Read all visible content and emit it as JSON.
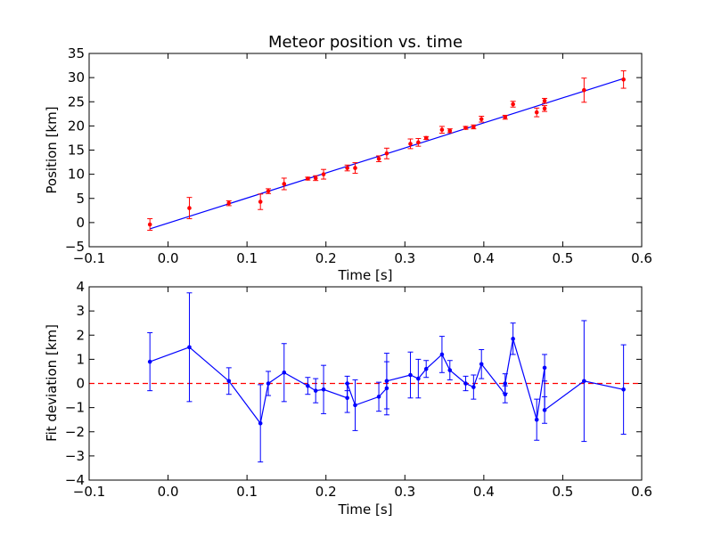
{
  "chart_data": [
    {
      "type": "scatter",
      "title": "Meteor position vs. time",
      "xlabel": "Time [s]",
      "ylabel": "Position [km]",
      "xlim": [
        -0.1,
        0.6
      ],
      "ylim": [
        -5,
        35
      ],
      "xticks": [
        -0.1,
        0.0,
        0.1,
        0.2,
        0.3,
        0.4,
        0.5,
        0.6
      ],
      "xtick_labels": [
        "−0.1",
        "0.0",
        "0.1",
        "0.2",
        "0.3",
        "0.4",
        "0.5",
        "0.6"
      ],
      "yticks": [
        -5,
        0,
        5,
        10,
        15,
        20,
        25,
        30,
        35
      ],
      "ytick_labels": [
        "−5",
        "0",
        "5",
        "10",
        "15",
        "20",
        "25",
        "30",
        "35"
      ],
      "grid": false,
      "colors": {
        "points": "#ff0000",
        "fit_line": "#0000ff"
      },
      "fit_line": {
        "x": [
          -0.023,
          0.577
        ],
        "y": [
          -1.3,
          29.8
        ]
      },
      "series": [
        {
          "x": [
            -0.023,
            0.027,
            0.077,
            0.117,
            0.127,
            0.147,
            0.177,
            0.187,
            0.197,
            0.227,
            0.237,
            0.267,
            0.277,
            0.307,
            0.317,
            0.327,
            0.347,
            0.357,
            0.377,
            0.387,
            0.397,
            0.427,
            0.437,
            0.467,
            0.477,
            0.477,
            0.527,
            0.577
          ],
          "y": [
            -0.4,
            3.0,
            4.0,
            4.3,
            6.5,
            8.0,
            9.1,
            9.2,
            10.0,
            11.3,
            11.3,
            13.2,
            14.3,
            16.3,
            16.6,
            17.5,
            19.2,
            19.0,
            19.6,
            19.8,
            21.4,
            21.8,
            24.5,
            22.8,
            23.6,
            25.2,
            27.4,
            29.6
          ],
          "err": [
            1.2,
            2.2,
            0.5,
            1.6,
            0.5,
            1.2,
            0.3,
            0.5,
            1.0,
            0.6,
            1.1,
            0.6,
            1.1,
            1.0,
            0.8,
            0.3,
            0.7,
            0.4,
            0.3,
            0.4,
            0.6,
            0.4,
            0.6,
            0.9,
            0.6,
            0.5,
            2.5,
            1.8
          ]
        }
      ]
    },
    {
      "type": "line",
      "title": "",
      "xlabel": "Time [s]",
      "ylabel": "Fit deviation [km]",
      "xlim": [
        -0.1,
        0.6
      ],
      "ylim": [
        -4,
        4
      ],
      "xticks": [
        -0.1,
        0.0,
        0.1,
        0.2,
        0.3,
        0.4,
        0.5,
        0.6
      ],
      "xtick_labels": [
        "−0.1",
        "0.0",
        "0.1",
        "0.2",
        "0.3",
        "0.4",
        "0.5",
        "0.6"
      ],
      "yticks": [
        -4,
        -3,
        -2,
        -1,
        0,
        1,
        2,
        3,
        4
      ],
      "ytick_labels": [
        "−4",
        "−3",
        "−2",
        "−1",
        "0",
        "1",
        "2",
        "3",
        "4"
      ],
      "grid": false,
      "colors": {
        "line": "#0000ff",
        "zero_line": "#ff0000"
      },
      "zero_line": {
        "y": 0,
        "style": "dashed"
      },
      "series": [
        {
          "x": [
            -0.023,
            0.027,
            0.077,
            0.117,
            0.127,
            0.147,
            0.177,
            0.187,
            0.197,
            0.227,
            0.227,
            0.237,
            0.267,
            0.277,
            0.277,
            0.307,
            0.317,
            0.327,
            0.347,
            0.357,
            0.377,
            0.387,
            0.397,
            0.427,
            0.427,
            0.437,
            0.467,
            0.477,
            0.477,
            0.527,
            0.577
          ],
          "y": [
            0.9,
            1.5,
            0.1,
            -1.65,
            0.0,
            0.45,
            -0.1,
            -0.3,
            -0.25,
            -0.6,
            0.0,
            -0.9,
            -0.55,
            -0.2,
            0.1,
            0.35,
            0.2,
            0.6,
            1.2,
            0.55,
            0.0,
            -0.15,
            0.8,
            -0.45,
            0.0,
            1.85,
            -1.5,
            0.65,
            -1.1,
            0.1,
            -0.25
          ],
          "err": [
            1.2,
            2.25,
            0.55,
            1.6,
            0.5,
            1.2,
            0.35,
            0.5,
            1.0,
            0.6,
            0.3,
            1.05,
            0.6,
            1.1,
            1.15,
            0.95,
            0.8,
            0.35,
            0.75,
            0.4,
            0.3,
            0.5,
            0.6,
            0.35,
            0.4,
            0.65,
            0.85,
            0.55,
            0.55,
            2.5,
            1.85
          ]
        }
      ]
    }
  ]
}
